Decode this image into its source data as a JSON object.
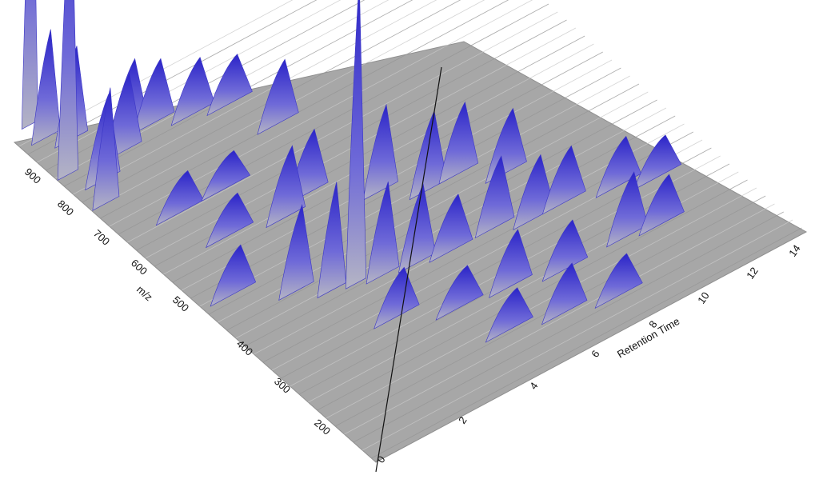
{
  "chart_data": {
    "type": "surface-3d",
    "title": "",
    "xlabel": "Retention Time",
    "ylabel": "m/z",
    "xlim": [
      0,
      14
    ],
    "ylim": [
      120,
      960
    ],
    "x_ticks": [
      "0",
      "2",
      "4",
      "6",
      "8",
      "10",
      "12",
      "14"
    ],
    "y_ticks": [
      "200",
      "300",
      "400",
      "500",
      "600",
      "700",
      "800",
      "900"
    ],
    "base_color": "#a9a9a9",
    "peak_color": "#2a23c8",
    "grid": false,
    "peaks": [
      {
        "rt": 0.8,
        "mz": 975,
        "h": 1.0
      },
      {
        "rt": 0.45,
        "mz": 860,
        "h": 0.9
      },
      {
        "rt": 0.9,
        "mz": 940,
        "h": 0.7
      },
      {
        "rt": 1.4,
        "mz": 915,
        "h": 0.6
      },
      {
        "rt": 0.6,
        "mz": 780,
        "h": 0.75
      },
      {
        "rt": 1.1,
        "mz": 820,
        "h": 0.55
      },
      {
        "rt": 2.2,
        "mz": 850,
        "h": 0.5
      },
      {
        "rt": 2.8,
        "mz": 880,
        "h": 0.45
      },
      {
        "rt": 3.5,
        "mz": 870,
        "h": 0.4
      },
      {
        "rt": 4.5,
        "mz": 850,
        "h": 0.35
      },
      {
        "rt": 5.5,
        "mz": 835,
        "h": 0.3
      },
      {
        "rt": 6.0,
        "mz": 760,
        "h": 0.4
      },
      {
        "rt": 2.0,
        "mz": 700,
        "h": 0.25
      },
      {
        "rt": 3.5,
        "mz": 700,
        "h": 0.22
      },
      {
        "rt": 2.5,
        "mz": 620,
        "h": 0.25
      },
      {
        "rt": 4.0,
        "mz": 600,
        "h": 0.45
      },
      {
        "rt": 5.0,
        "mz": 620,
        "h": 0.4
      },
      {
        "rt": 6.5,
        "mz": 560,
        "h": 0.55
      },
      {
        "rt": 7.5,
        "mz": 520,
        "h": 0.5
      },
      {
        "rt": 8.5,
        "mz": 520,
        "h": 0.45
      },
      {
        "rt": 9.5,
        "mz": 480,
        "h": 0.4
      },
      {
        "rt": 1.2,
        "mz": 520,
        "h": 0.3
      },
      {
        "rt": 2.5,
        "mz": 470,
        "h": 0.55
      },
      {
        "rt": 3.2,
        "mz": 440,
        "h": 0.7
      },
      {
        "rt": 3.8,
        "mz": 430,
        "h": 0.9
      },
      {
        "rt": 4.6,
        "mz": 420,
        "h": 0.6
      },
      {
        "rt": 5.6,
        "mz": 410,
        "h": 0.5
      },
      {
        "rt": 6.6,
        "mz": 400,
        "h": 0.35
      },
      {
        "rt": 8.0,
        "mz": 400,
        "h": 0.45
      },
      {
        "rt": 9.0,
        "mz": 380,
        "h": 0.4
      },
      {
        "rt": 10.0,
        "mz": 380,
        "h": 0.35
      },
      {
        "rt": 11.5,
        "mz": 360,
        "h": 0.3
      },
      {
        "rt": 12.5,
        "mz": 340,
        "h": 0.25
      },
      {
        "rt": 4.0,
        "mz": 340,
        "h": 0.3
      },
      {
        "rt": 5.5,
        "mz": 300,
        "h": 0.25
      },
      {
        "rt": 7.0,
        "mz": 290,
        "h": 0.35
      },
      {
        "rt": 8.5,
        "mz": 270,
        "h": 0.3
      },
      {
        "rt": 10.5,
        "mz": 270,
        "h": 0.4
      },
      {
        "rt": 11.5,
        "mz": 260,
        "h": 0.3
      },
      {
        "rt": 6.0,
        "mz": 220,
        "h": 0.25
      },
      {
        "rt": 7.5,
        "mz": 200,
        "h": 0.3
      },
      {
        "rt": 9.0,
        "mz": 180,
        "h": 0.25
      }
    ]
  }
}
